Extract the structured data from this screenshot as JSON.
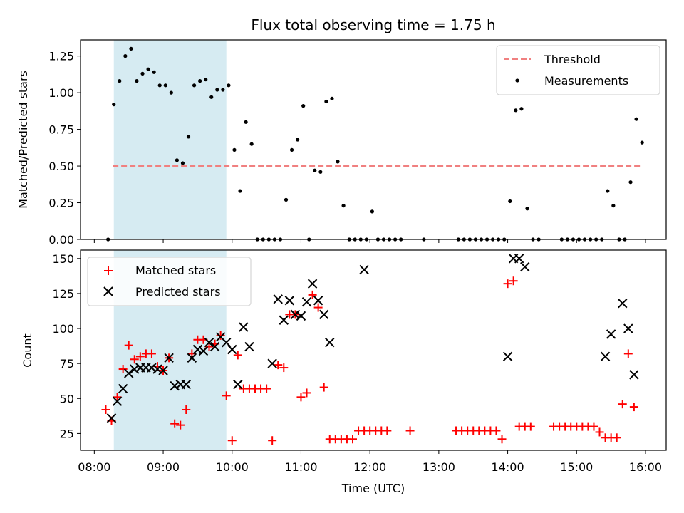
{
  "title": "Flux total observing time = 1.75 h",
  "chart_data": [
    {
      "type": "scatter",
      "ylabel": "Matched/Predicted stars",
      "ylim": [
        0,
        1.36
      ],
      "yticks": [
        0.0,
        0.25,
        0.5,
        0.75,
        1.0,
        1.25
      ],
      "ytick_labels": [
        "0.00",
        "0.25",
        "0.50",
        "0.75",
        "1.00",
        "1.25"
      ],
      "threshold": {
        "value": 0.5,
        "x_start": "08:16",
        "x_end": "15:58",
        "color": "#f08080"
      },
      "highlight_span": {
        "start": "08:17",
        "end": "09:55",
        "color": "#add8e6"
      },
      "legend_position": "upper right",
      "series": [
        {
          "name": "Threshold",
          "style": "dashed-line",
          "color": "#f08080"
        },
        {
          "name": "Measurements",
          "style": "dot",
          "color": "#000000",
          "points": [
            [
              "08:12",
              0.0
            ],
            [
              "08:17",
              0.92
            ],
            [
              "08:22",
              1.08
            ],
            [
              "08:27",
              1.25
            ],
            [
              "08:32",
              1.3
            ],
            [
              "08:37",
              1.08
            ],
            [
              "08:42",
              1.13
            ],
            [
              "08:47",
              1.16
            ],
            [
              "08:52",
              1.14
            ],
            [
              "08:57",
              1.05
            ],
            [
              "09:02",
              1.05
            ],
            [
              "09:07",
              1.0
            ],
            [
              "09:12",
              0.54
            ],
            [
              "09:17",
              0.52
            ],
            [
              "09:22",
              0.7
            ],
            [
              "09:27",
              1.05
            ],
            [
              "09:32",
              1.08
            ],
            [
              "09:37",
              1.09
            ],
            [
              "09:42",
              0.97
            ],
            [
              "09:47",
              1.02
            ],
            [
              "09:52",
              1.02
            ],
            [
              "09:57",
              1.05
            ],
            [
              "10:02",
              0.61
            ],
            [
              "10:07",
              0.33
            ],
            [
              "10:12",
              0.8
            ],
            [
              "10:17",
              0.65
            ],
            [
              "10:22",
              0.0
            ],
            [
              "10:27",
              0.0
            ],
            [
              "10:32",
              0.0
            ],
            [
              "10:37",
              0.0
            ],
            [
              "10:42",
              0.0
            ],
            [
              "10:47",
              0.27
            ],
            [
              "10:52",
              0.61
            ],
            [
              "10:57",
              0.68
            ],
            [
              "11:02",
              0.91
            ],
            [
              "11:07",
              0.0
            ],
            [
              "11:12",
              0.47
            ],
            [
              "11:17",
              0.46
            ],
            [
              "11:22",
              0.94
            ],
            [
              "11:27",
              0.96
            ],
            [
              "11:32",
              0.53
            ],
            [
              "11:37",
              0.23
            ],
            [
              "11:42",
              0.0
            ],
            [
              "11:47",
              0.0
            ],
            [
              "11:52",
              0.0
            ],
            [
              "11:57",
              0.0
            ],
            [
              "12:02",
              0.19
            ],
            [
              "12:07",
              0.0
            ],
            [
              "12:12",
              0.0
            ],
            [
              "12:17",
              0.0
            ],
            [
              "12:22",
              0.0
            ],
            [
              "12:27",
              0.0
            ],
            [
              "12:47",
              0.0
            ],
            [
              "13:17",
              0.0
            ],
            [
              "13:22",
              0.0
            ],
            [
              "13:27",
              0.0
            ],
            [
              "13:32",
              0.0
            ],
            [
              "13:37",
              0.0
            ],
            [
              "13:42",
              0.0
            ],
            [
              "13:47",
              0.0
            ],
            [
              "13:52",
              0.0
            ],
            [
              "13:57",
              0.0
            ],
            [
              "14:02",
              0.26
            ],
            [
              "14:07",
              0.88
            ],
            [
              "14:12",
              0.89
            ],
            [
              "14:17",
              0.21
            ],
            [
              "14:22",
              0.0
            ],
            [
              "14:27",
              0.0
            ],
            [
              "14:47",
              0.0
            ],
            [
              "14:52",
              0.0
            ],
            [
              "14:57",
              0.0
            ],
            [
              "15:02",
              0.0
            ],
            [
              "15:07",
              0.0
            ],
            [
              "15:12",
              0.0
            ],
            [
              "15:17",
              0.0
            ],
            [
              "15:22",
              0.0
            ],
            [
              "15:27",
              0.33
            ],
            [
              "15:32",
              0.23
            ],
            [
              "15:37",
              0.0
            ],
            [
              "15:42",
              0.0
            ],
            [
              "15:47",
              0.39
            ],
            [
              "15:52",
              0.82
            ],
            [
              "15:57",
              0.66
            ]
          ]
        }
      ]
    },
    {
      "type": "scatter",
      "xlabel": "Time (UTC)",
      "ylabel": "Count",
      "xlim": [
        "07:48",
        "16:18"
      ],
      "xticks": [
        "08:00",
        "09:00",
        "10:00",
        "11:00",
        "12:00",
        "13:00",
        "14:00",
        "15:00",
        "16:00"
      ],
      "ylim": [
        13,
        156
      ],
      "yticks": [
        25,
        50,
        75,
        100,
        125,
        150
      ],
      "highlight_span": {
        "start": "08:17",
        "end": "09:55",
        "color": "#add8e6"
      },
      "legend_position": "upper left",
      "series": [
        {
          "name": "Matched stars",
          "style": "plus",
          "color": "#ff0000",
          "points": [
            [
              "08:10",
              42
            ],
            [
              "08:15",
              34
            ],
            [
              "08:20",
              51
            ],
            [
              "08:25",
              71
            ],
            [
              "08:30",
              88
            ],
            [
              "08:35",
              78
            ],
            [
              "08:40",
              80
            ],
            [
              "08:45",
              82
            ],
            [
              "08:50",
              82
            ],
            [
              "08:55",
              73
            ],
            [
              "09:00",
              70
            ],
            [
              "09:05",
              79
            ],
            [
              "09:10",
              32
            ],
            [
              "09:15",
              31
            ],
            [
              "09:20",
              42
            ],
            [
              "09:25",
              82
            ],
            [
              "09:30",
              92
            ],
            [
              "09:35",
              92
            ],
            [
              "09:40",
              87
            ],
            [
              "09:45",
              89
            ],
            [
              "09:50",
              95
            ],
            [
              "09:55",
              52
            ],
            [
              "10:00",
              20
            ],
            [
              "10:05",
              81
            ],
            [
              "10:10",
              57
            ],
            [
              "10:15",
              57
            ],
            [
              "10:20",
              57
            ],
            [
              "10:25",
              57
            ],
            [
              "10:30",
              57
            ],
            [
              "10:35",
              20
            ],
            [
              "10:40",
              74
            ],
            [
              "10:45",
              72
            ],
            [
              "10:50",
              110
            ],
            [
              "10:55",
              110
            ],
            [
              "11:00",
              51
            ],
            [
              "11:05",
              54
            ],
            [
              "11:10",
              124
            ],
            [
              "11:15",
              115
            ],
            [
              "11:20",
              58
            ],
            [
              "11:25",
              21
            ],
            [
              "11:30",
              21
            ],
            [
              "11:35",
              21
            ],
            [
              "11:40",
              21
            ],
            [
              "11:45",
              21
            ],
            [
              "11:50",
              27
            ],
            [
              "11:55",
              27
            ],
            [
              "12:00",
              27
            ],
            [
              "12:05",
              27
            ],
            [
              "12:10",
              27
            ],
            [
              "12:15",
              27
            ],
            [
              "12:35",
              27
            ],
            [
              "13:15",
              27
            ],
            [
              "13:20",
              27
            ],
            [
              "13:25",
              27
            ],
            [
              "13:30",
              27
            ],
            [
              "13:35",
              27
            ],
            [
              "13:40",
              27
            ],
            [
              "13:45",
              27
            ],
            [
              "13:50",
              27
            ],
            [
              "13:55",
              21
            ],
            [
              "14:00",
              132
            ],
            [
              "14:05",
              134
            ],
            [
              "14:10",
              30
            ],
            [
              "14:15",
              30
            ],
            [
              "14:20",
              30
            ],
            [
              "14:40",
              30
            ],
            [
              "14:45",
              30
            ],
            [
              "14:50",
              30
            ],
            [
              "14:55",
              30
            ],
            [
              "15:00",
              30
            ],
            [
              "15:05",
              30
            ],
            [
              "15:10",
              30
            ],
            [
              "15:15",
              30
            ],
            [
              "15:20",
              26
            ],
            [
              "15:25",
              22
            ],
            [
              "15:30",
              22
            ],
            [
              "15:35",
              22
            ],
            [
              "15:40",
              46
            ],
            [
              "15:45",
              82
            ],
            [
              "15:50",
              44
            ]
          ]
        },
        {
          "name": "Predicted stars",
          "style": "x",
          "color": "#000000",
          "points": [
            [
              "08:15",
              36
            ],
            [
              "08:20",
              48
            ],
            [
              "08:25",
              57
            ],
            [
              "08:30",
              68
            ],
            [
              "08:35",
              71
            ],
            [
              "08:40",
              72
            ],
            [
              "08:45",
              72
            ],
            [
              "08:50",
              72
            ],
            [
              "08:55",
              71
            ],
            [
              "09:00",
              70
            ],
            [
              "09:05",
              79
            ],
            [
              "09:10",
              59
            ],
            [
              "09:15",
              60
            ],
            [
              "09:20",
              60
            ],
            [
              "09:25",
              79
            ],
            [
              "09:30",
              85
            ],
            [
              "09:35",
              84
            ],
            [
              "09:40",
              90
            ],
            [
              "09:45",
              87
            ],
            [
              "09:50",
              94
            ],
            [
              "09:55",
              90
            ],
            [
              "10:00",
              85
            ],
            [
              "10:05",
              60
            ],
            [
              "10:10",
              101
            ],
            [
              "10:15",
              87
            ],
            [
              "10:35",
              75
            ],
            [
              "10:40",
              121
            ],
            [
              "10:45",
              106
            ],
            [
              "10:50",
              120
            ],
            [
              "10:55",
              110
            ],
            [
              "11:00",
              109
            ],
            [
              "11:05",
              119
            ],
            [
              "11:10",
              132
            ],
            [
              "11:15",
              120
            ],
            [
              "11:20",
              110
            ],
            [
              "11:25",
              90
            ],
            [
              "11:55",
              142
            ],
            [
              "14:00",
              80
            ],
            [
              "14:05",
              150
            ],
            [
              "14:10",
              150
            ],
            [
              "14:15",
              144
            ],
            [
              "15:25",
              80
            ],
            [
              "15:30",
              96
            ],
            [
              "15:40",
              118
            ],
            [
              "15:45",
              100
            ],
            [
              "15:50",
              67
            ]
          ]
        }
      ]
    }
  ]
}
